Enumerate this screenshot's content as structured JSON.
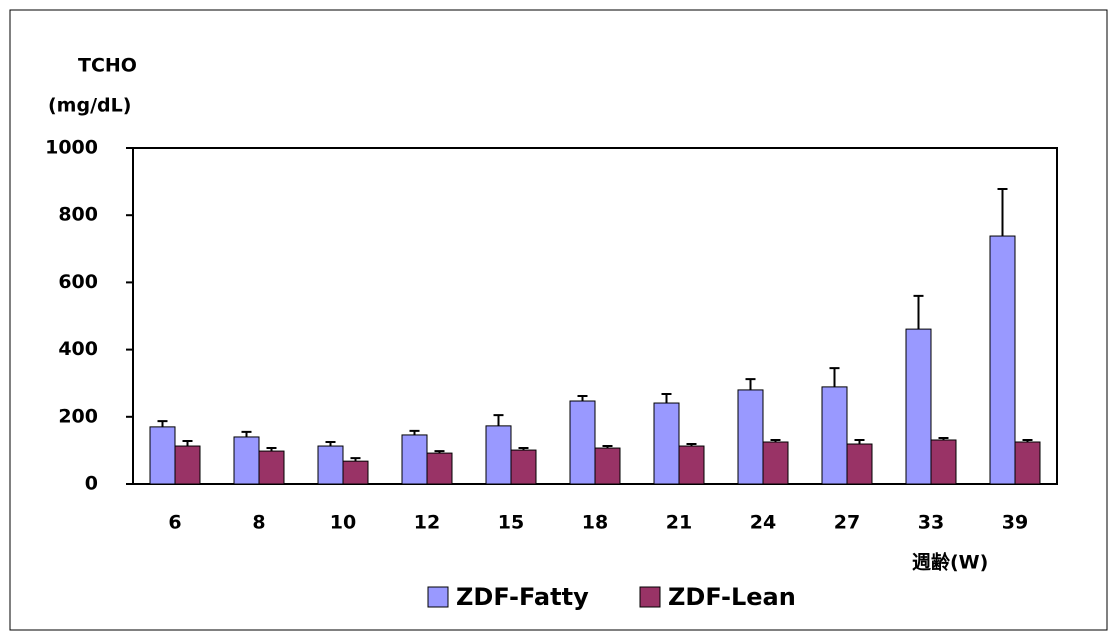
{
  "chart_data": {
    "type": "bar",
    "y_label_lines": [
      "TCHO",
      "(mg/dL)"
    ],
    "x_label": "週齢(W)",
    "categories": [
      "6",
      "8",
      "10",
      "12",
      "15",
      "18",
      "21",
      "24",
      "27",
      "33",
      "39"
    ],
    "series": [
      {
        "name": "ZDF-Fatty",
        "color": "#9999ff",
        "values": [
          170,
          140,
          113,
          146,
          173,
          247,
          241,
          280,
          289,
          461,
          738
        ],
        "errors": [
          17,
          15,
          12,
          12,
          32,
          15,
          27,
          32,
          56,
          99,
          140
        ]
      },
      {
        "name": "ZDF-Lean",
        "color": "#993366",
        "values": [
          113,
          98,
          68,
          92,
          101,
          107,
          113,
          125,
          119,
          131,
          125
        ],
        "errors": [
          15,
          9,
          9,
          6,
          6,
          6,
          6,
          6,
          12,
          6,
          6
        ]
      }
    ],
    "ylim": [
      0,
      1000
    ],
    "yticks": [
      0,
      200,
      400,
      600,
      800,
      1000
    ],
    "legend": "bottom"
  }
}
